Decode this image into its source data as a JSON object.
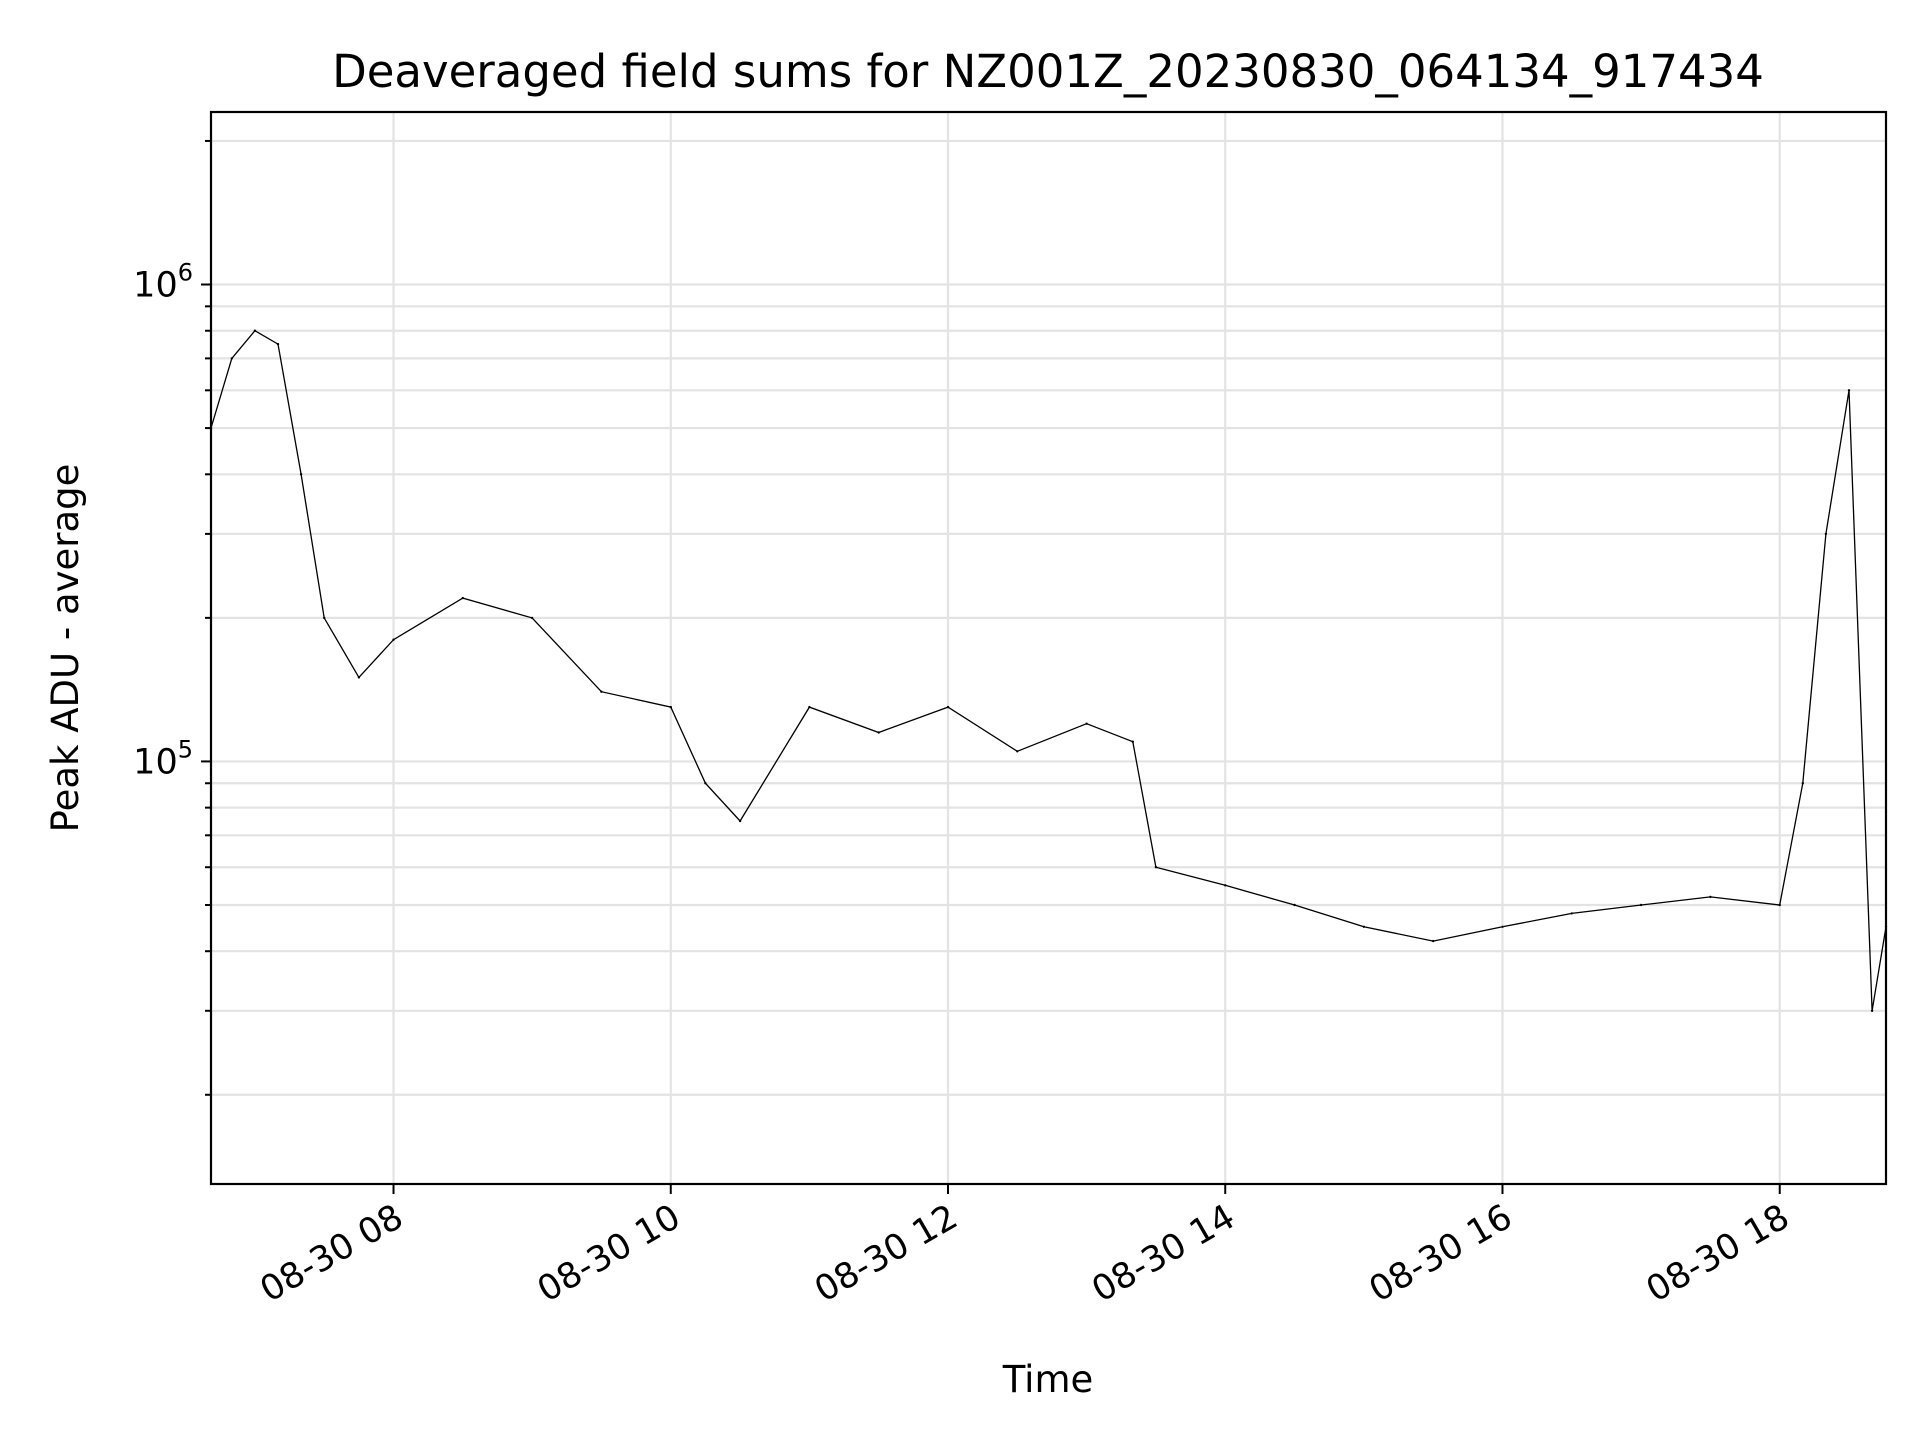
{
  "chart_data": {
    "type": "line",
    "title": "Deaveraged field sums for NZ001Z_20230830_064134_917434",
    "xlabel": "Time",
    "ylabel": "Peak ADU - average",
    "yscale": "log",
    "xlim": [
      "2023-08-30 06:41",
      "2023-08-30 18:46"
    ],
    "ylim": [
      13000,
      2300000
    ],
    "grid": true,
    "x_ticks": [
      "08-30 08",
      "08-30 10",
      "08-30 12",
      "08-30 14",
      "08-30 16",
      "08-30 18"
    ],
    "y_ticks": [
      {
        "base": "10",
        "exp": "6",
        "value": 1000000
      },
      {
        "base": "10",
        "exp": "5",
        "value": 100000
      }
    ],
    "series": [
      {
        "color": "#000000",
        "x": [
          "2023-08-30 06:41",
          "2023-08-30 06:50",
          "2023-08-30 07:00",
          "2023-08-30 07:10",
          "2023-08-30 07:20",
          "2023-08-30 07:30",
          "2023-08-30 07:45",
          "2023-08-30 08:00",
          "2023-08-30 08:30",
          "2023-08-30 09:00",
          "2023-08-30 09:30",
          "2023-08-30 10:00",
          "2023-08-30 10:15",
          "2023-08-30 10:30",
          "2023-08-30 11:00",
          "2023-08-30 11:30",
          "2023-08-30 12:00",
          "2023-08-30 12:30",
          "2023-08-30 13:00",
          "2023-08-30 13:20",
          "2023-08-30 13:30",
          "2023-08-30 14:00",
          "2023-08-30 14:30",
          "2023-08-30 15:00",
          "2023-08-30 15:30",
          "2023-08-30 16:00",
          "2023-08-30 16:30",
          "2023-08-30 17:00",
          "2023-08-30 17:30",
          "2023-08-30 18:00",
          "2023-08-30 18:10",
          "2023-08-30 18:20",
          "2023-08-30 18:30",
          "2023-08-30 18:40",
          "2023-08-30 18:46"
        ],
        "values": [
          500000,
          700000,
          800000,
          750000,
          400000,
          200000,
          150000,
          180000,
          220000,
          200000,
          140000,
          130000,
          90000,
          75000,
          130000,
          115000,
          130000,
          105000,
          120000,
          110000,
          60000,
          55000,
          50000,
          45000,
          42000,
          45000,
          48000,
          50000,
          52000,
          50000,
          90000,
          300000,
          600000,
          30000,
          45000
        ]
      }
    ]
  }
}
